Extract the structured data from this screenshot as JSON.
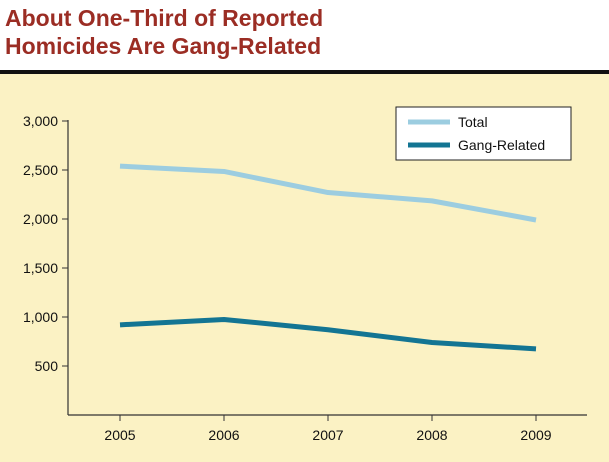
{
  "title_lines": [
    "About One-Third of Reported",
    "Homicides Are Gang-Related"
  ],
  "colors": {
    "title": "#9b2d24",
    "background": "#fbf2c4",
    "total": "#9ccde0",
    "gang": "#137593",
    "axis": "#333333"
  },
  "chart_data": {
    "type": "line",
    "title": "About One-Third of Reported Homicides Are Gang-Related",
    "xlabel": "",
    "ylabel": "",
    "x": [
      "2005",
      "2006",
      "2007",
      "2008",
      "2009"
    ],
    "ylim": [
      0,
      3000
    ],
    "yticks": [
      500,
      1000,
      1500,
      2000,
      2500,
      3000
    ],
    "ytick_labels": [
      "500",
      "1,000",
      "1,500",
      "2,000",
      "2,500",
      "3,000"
    ],
    "grid": false,
    "legend_position": "top-right",
    "series": [
      {
        "name": "Total",
        "values": [
          2540,
          2485,
          2270,
          2185,
          1990
        ]
      },
      {
        "name": "Gang-Related",
        "values": [
          920,
          975,
          870,
          740,
          675
        ]
      }
    ]
  }
}
